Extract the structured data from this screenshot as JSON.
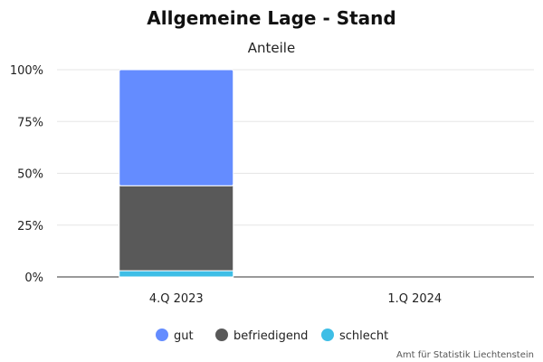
{
  "chart_data": {
    "type": "bar",
    "stacked": true,
    "title": "Allgemeine Lage - Stand",
    "subtitle": "Anteile",
    "categories": [
      "4.Q 2023",
      "1.Q 2024"
    ],
    "y_ticks": [
      "0%",
      "25%",
      "50%",
      "75%",
      "100%"
    ],
    "ylim": [
      0,
      100
    ],
    "series": [
      {
        "name": "gut",
        "values": [
          56,
          null
        ],
        "color": "#648cff"
      },
      {
        "name": "befriedigend",
        "values": [
          41,
          null
        ],
        "color": "#595959"
      },
      {
        "name": "schlecht",
        "values": [
          3,
          null
        ],
        "color": "#3ebee6"
      }
    ],
    "grid": true,
    "legend_position": "bottom-center",
    "credit": "Amt für Statistik Liechtenstein"
  }
}
